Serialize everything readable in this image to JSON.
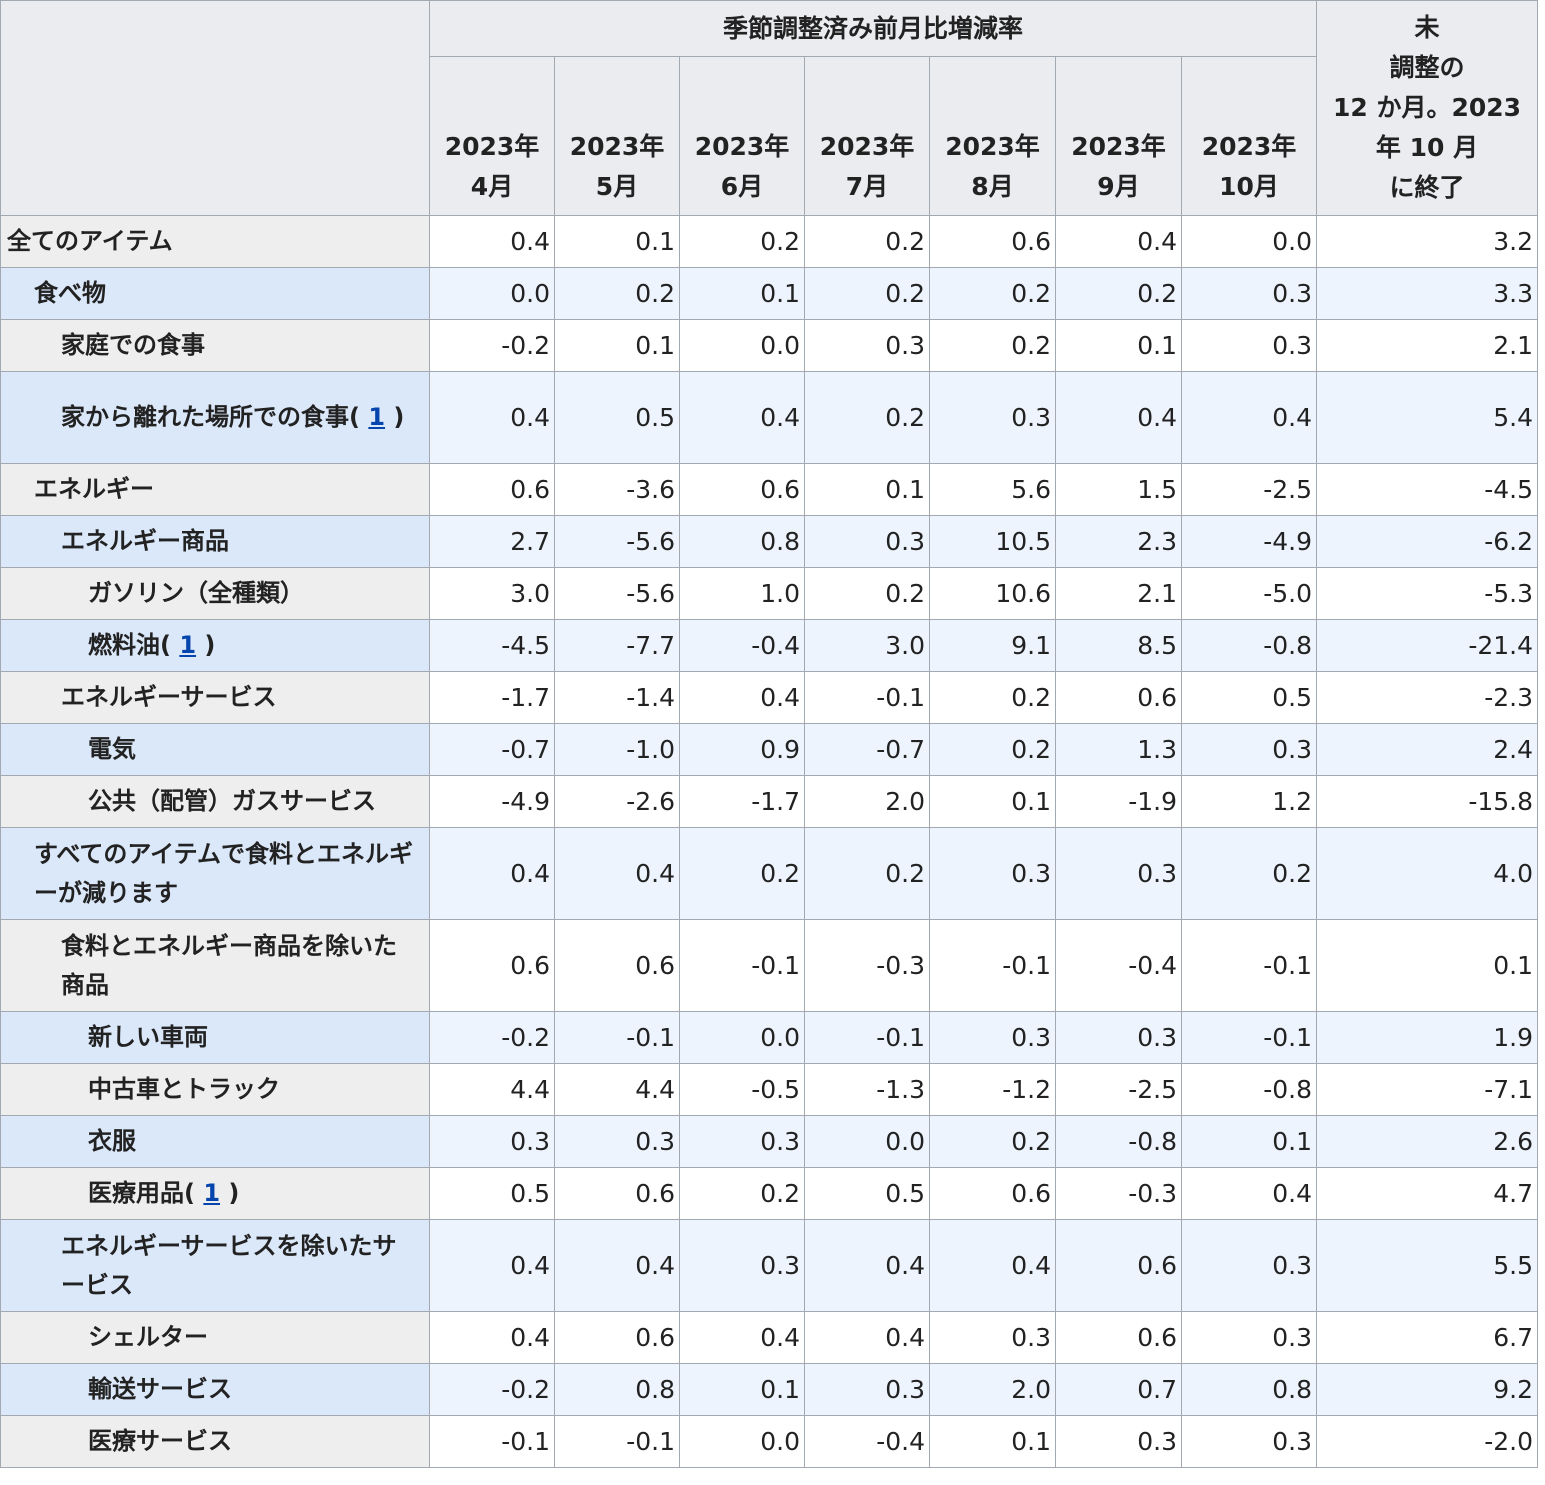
{
  "header": {
    "group_label": "季節調整済み前月比増減率",
    "months": [
      {
        "year": "2023年",
        "month": "4月"
      },
      {
        "year": "2023年",
        "month": "5月"
      },
      {
        "year": "2023年",
        "month": "6月"
      },
      {
        "year": "2023年",
        "month": "7月"
      },
      {
        "year": "2023年",
        "month": "8月"
      },
      {
        "year": "2023年",
        "month": "9月"
      },
      {
        "year": "2023年",
        "month": "10月"
      }
    ],
    "yearly_lines": [
      "未",
      "調整の",
      "12 か月。2023",
      "年 10 月",
      "に終了"
    ]
  },
  "rows": [
    {
      "label": "全てのアイテム",
      "level": 0,
      "values": [
        "0.4",
        "0.1",
        "0.2",
        "0.2",
        "0.6",
        "0.4",
        "0.0"
      ],
      "yearly": "3.2"
    },
    {
      "label": "食べ物",
      "level": 1,
      "values": [
        "0.0",
        "0.2",
        "0.1",
        "0.2",
        "0.2",
        "0.2",
        "0.3"
      ],
      "yearly": "3.3"
    },
    {
      "label": "家庭での食事",
      "level": 2,
      "values": [
        "-0.2",
        "0.1",
        "0.0",
        "0.3",
        "0.2",
        "0.1",
        "0.3"
      ],
      "yearly": "2.1"
    },
    {
      "label": "家から離れた場所での食事(",
      "footnote": "1",
      "suffix": ")",
      "level": 2,
      "tall": true,
      "values": [
        "0.4",
        "0.5",
        "0.4",
        "0.2",
        "0.3",
        "0.4",
        "0.4"
      ],
      "yearly": "5.4"
    },
    {
      "label": "エネルギー",
      "level": 1,
      "values": [
        "0.6",
        "-3.6",
        "0.6",
        "0.1",
        "5.6",
        "1.5",
        "-2.5"
      ],
      "yearly": "-4.5"
    },
    {
      "label": "エネルギー商品",
      "level": 2,
      "values": [
        "2.7",
        "-5.6",
        "0.8",
        "0.3",
        "10.5",
        "2.3",
        "-4.9"
      ],
      "yearly": "-6.2"
    },
    {
      "label": "ガソリン（全種類）",
      "level": 3,
      "values": [
        "3.0",
        "-5.6",
        "1.0",
        "0.2",
        "10.6",
        "2.1",
        "-5.0"
      ],
      "yearly": "-5.3"
    },
    {
      "label": "燃料油(",
      "footnote": "1",
      "suffix": ")",
      "level": 3,
      "values": [
        "-4.5",
        "-7.7",
        "-0.4",
        "3.0",
        "9.1",
        "8.5",
        "-0.8"
      ],
      "yearly": "-21.4"
    },
    {
      "label": "エネルギーサービス",
      "level": 2,
      "values": [
        "-1.7",
        "-1.4",
        "0.4",
        "-0.1",
        "0.2",
        "0.6",
        "0.5"
      ],
      "yearly": "-2.3"
    },
    {
      "label": "電気",
      "level": 3,
      "values": [
        "-0.7",
        "-1.0",
        "0.9",
        "-0.7",
        "0.2",
        "1.3",
        "0.3"
      ],
      "yearly": "2.4"
    },
    {
      "label": "公共（配管）ガスサービス",
      "level": 3,
      "values": [
        "-4.9",
        "-2.6",
        "-1.7",
        "2.0",
        "0.1",
        "-1.9",
        "1.2"
      ],
      "yearly": "-15.8"
    },
    {
      "label": "すべてのアイテムで食料とエネルギーが減ります",
      "level": 1,
      "tall": true,
      "values": [
        "0.4",
        "0.4",
        "0.2",
        "0.2",
        "0.3",
        "0.3",
        "0.2"
      ],
      "yearly": "4.0"
    },
    {
      "label": "食料とエネルギー商品を除いた商品",
      "level": 2,
      "tall": true,
      "values": [
        "0.6",
        "0.6",
        "-0.1",
        "-0.3",
        "-0.1",
        "-0.4",
        "-0.1"
      ],
      "yearly": "0.1"
    },
    {
      "label": "新しい車両",
      "level": 3,
      "values": [
        "-0.2",
        "-0.1",
        "0.0",
        "-0.1",
        "0.3",
        "0.3",
        "-0.1"
      ],
      "yearly": "1.9"
    },
    {
      "label": "中古車とトラック",
      "level": 3,
      "values": [
        "4.4",
        "4.4",
        "-0.5",
        "-1.3",
        "-1.2",
        "-2.5",
        "-0.8"
      ],
      "yearly": "-7.1"
    },
    {
      "label": "衣服",
      "level": 3,
      "values": [
        "0.3",
        "0.3",
        "0.3",
        "0.0",
        "0.2",
        "-0.8",
        "0.1"
      ],
      "yearly": "2.6"
    },
    {
      "label": "医療用品(",
      "footnote": "1",
      "suffix": ")",
      "level": 3,
      "values": [
        "0.5",
        "0.6",
        "0.2",
        "0.5",
        "0.6",
        "-0.3",
        "0.4"
      ],
      "yearly": "4.7"
    },
    {
      "label": "エネルギーサービスを除いたサービス",
      "level": 2,
      "tall": true,
      "values": [
        "0.4",
        "0.4",
        "0.3",
        "0.4",
        "0.4",
        "0.6",
        "0.3"
      ],
      "yearly": "5.5"
    },
    {
      "label": "シェルター",
      "level": 3,
      "values": [
        "0.4",
        "0.6",
        "0.4",
        "0.4",
        "0.3",
        "0.6",
        "0.3"
      ],
      "yearly": "6.7"
    },
    {
      "label": "輸送サービス",
      "level": 3,
      "values": [
        "-0.2",
        "0.8",
        "0.1",
        "0.3",
        "2.0",
        "0.7",
        "0.8"
      ],
      "yearly": "9.2"
    },
    {
      "label": "医療サービス",
      "level": 3,
      "values": [
        "-0.1",
        "-0.1",
        "0.0",
        "-0.4",
        "0.1",
        "0.3",
        "0.3"
      ],
      "yearly": "-2.0"
    }
  ]
}
